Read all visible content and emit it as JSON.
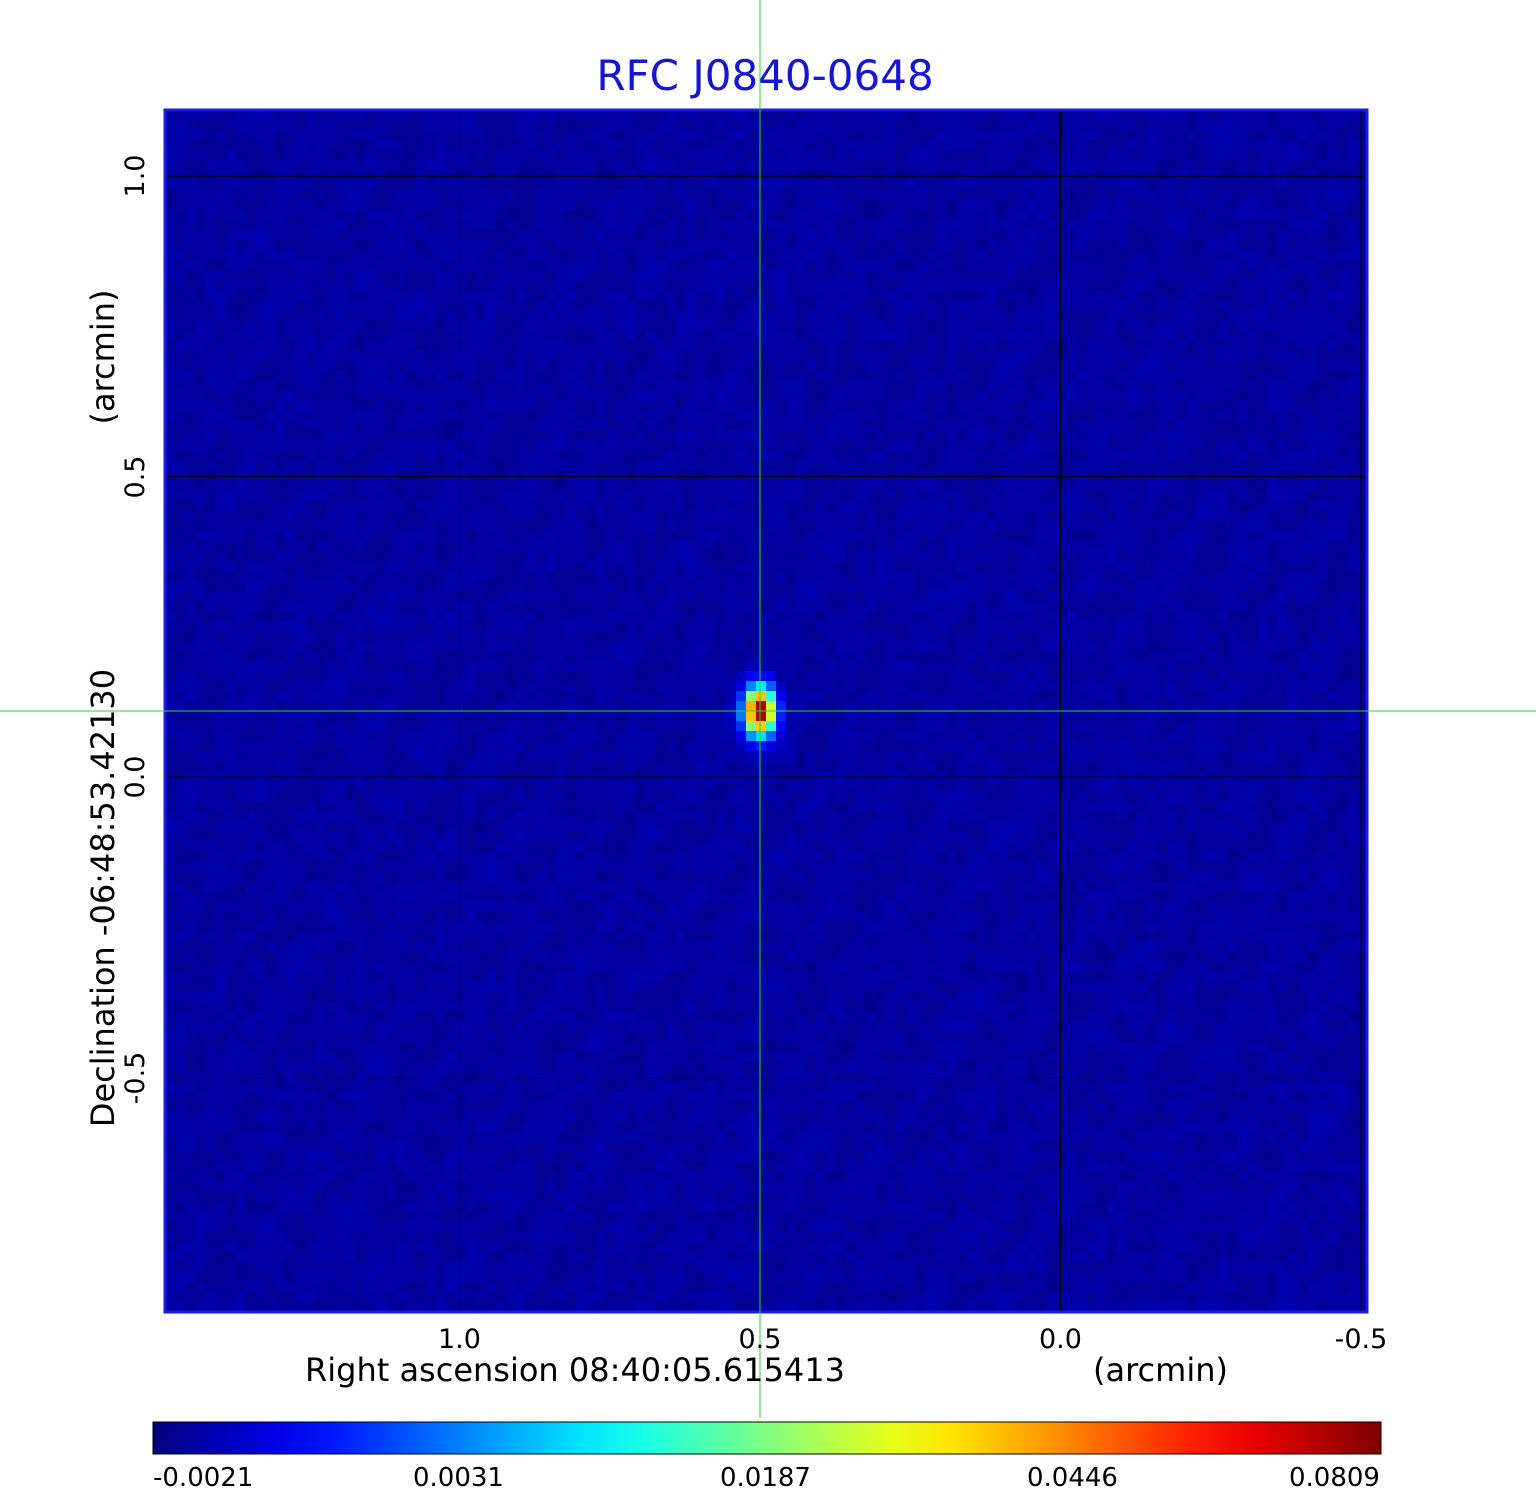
{
  "chart_data": {
    "type": "heatmap",
    "title": "RFC J0840-0648",
    "colormap": "jet",
    "x_axis": {
      "label_left": "Right ascension  08:40:05.615413",
      "label_right": "(arcmin)",
      "ticks": [
        1.0,
        0.5,
        0.0,
        -0.5
      ],
      "tick_labels": [
        "1.0",
        "0.5",
        "0.0",
        "-0.5"
      ],
      "range": [
        1.49,
        -0.51
      ],
      "direction": "decreasing"
    },
    "y_axis": {
      "label_left": "Declination  -06:48:53.42130",
      "label_right": "(arcmin)",
      "ticks": [
        -0.5,
        0.0,
        0.5,
        1.0
      ],
      "tick_labels": [
        "-0.5",
        "0.0",
        "0.5",
        "1.0"
      ],
      "range": [
        -0.89,
        1.11
      ]
    },
    "grid": true,
    "crosshair": {
      "x": 0.5,
      "y": 0.11,
      "color": "#22dd22"
    },
    "source_peak": {
      "x": 0.5,
      "y": 0.11,
      "peak": 0.0809
    },
    "colorbar": {
      "tick_labels": [
        "-0.0021",
        "0.0031",
        "0.0187",
        "0.0446",
        "0.0809"
      ],
      "ticks": [
        -0.0021,
        0.0031,
        0.0187,
        0.0446,
        0.0809
      ],
      "range": [
        -0.0021,
        0.0809
      ]
    }
  }
}
